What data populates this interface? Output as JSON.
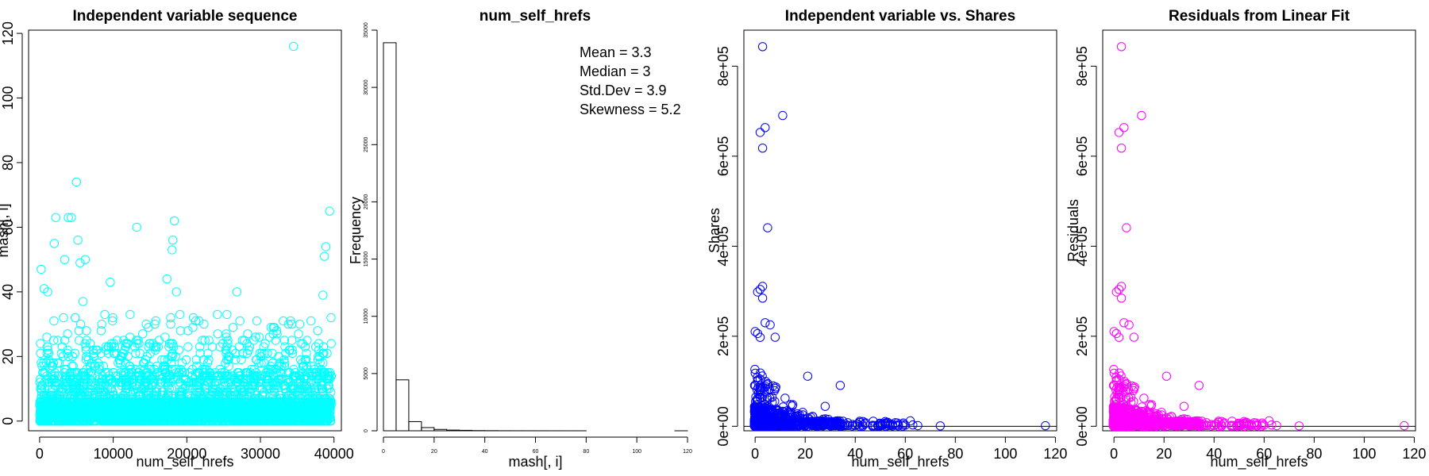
{
  "chart_data": [
    {
      "type": "scatter",
      "title": "Independent variable sequence",
      "xlabel": "num_self_hrefs",
      "ylabel": "mash[, i]",
      "xlim": [
        -1500,
        41000
      ],
      "ylim": [
        -3,
        121
      ],
      "xticks": [
        "0",
        "10000",
        "20000",
        "30000",
        "40000"
      ],
      "xtick_values": [
        0,
        10000,
        20000,
        30000,
        40000
      ],
      "yticks": [
        "0",
        "20",
        "40",
        "60",
        "80",
        "100",
        "120"
      ],
      "ytick_values": [
        0,
        20,
        40,
        60,
        80,
        100,
        120
      ],
      "color": "#00ffff",
      "n_points": 39644,
      "outliers": [
        {
          "x": 34500,
          "y": 116
        },
        {
          "x": 5000,
          "y": 74
        },
        {
          "x": 39400,
          "y": 65
        },
        {
          "x": 18300,
          "y": 62
        },
        {
          "x": 2200,
          "y": 63
        },
        {
          "x": 3900,
          "y": 63
        },
        {
          "x": 4300,
          "y": 63
        },
        {
          "x": 13200,
          "y": 60
        },
        {
          "x": 38900,
          "y": 54
        },
        {
          "x": 5200,
          "y": 56
        },
        {
          "x": 18100,
          "y": 56
        },
        {
          "x": 2000,
          "y": 55
        },
        {
          "x": 38700,
          "y": 51
        },
        {
          "x": 5500,
          "y": 49
        },
        {
          "x": 6200,
          "y": 50
        },
        {
          "x": 3400,
          "y": 50
        },
        {
          "x": 18000,
          "y": 53
        },
        {
          "x": 200,
          "y": 47
        },
        {
          "x": 9600,
          "y": 43
        },
        {
          "x": 17300,
          "y": 44
        },
        {
          "x": 26800,
          "y": 40
        },
        {
          "x": 38500,
          "y": 39
        },
        {
          "x": 600,
          "y": 41
        },
        {
          "x": 1100,
          "y": 40
        },
        {
          "x": 18600,
          "y": 40
        },
        {
          "x": 5900,
          "y": 37
        },
        {
          "x": 29500,
          "y": 31
        },
        {
          "x": 34100,
          "y": 31
        },
        {
          "x": 12300,
          "y": 33
        }
      ]
    },
    {
      "type": "bar",
      "title": "num_self_hrefs",
      "xlabel": "mash[, i]",
      "ylabel": "Frequency",
      "xlim": [
        0,
        120
      ],
      "ylim": [
        0,
        35000
      ],
      "xticks": [
        "0",
        "20",
        "40",
        "60",
        "80",
        "100",
        "120"
      ],
      "xtick_values": [
        0,
        20,
        40,
        60,
        80,
        100,
        120
      ],
      "yticks": [
        "0",
        "5000",
        "10000",
        "15000",
        "20000",
        "25000",
        "30000",
        "35000"
      ],
      "ytick_values": [
        0,
        5000,
        10000,
        15000,
        20000,
        25000,
        30000,
        35000
      ],
      "bin_edges": [
        0,
        5,
        10,
        15,
        20,
        25,
        30,
        35,
        40,
        45,
        50,
        55,
        60,
        65,
        70,
        75,
        80,
        85,
        90,
        95,
        100,
        105,
        110,
        115,
        120
      ],
      "values": [
        33900,
        4450,
        800,
        280,
        120,
        60,
        40,
        18,
        12,
        7,
        5,
        4,
        3,
        2,
        1,
        1,
        0,
        0,
        0,
        0,
        0,
        0,
        0,
        1
      ],
      "stats": [
        "Mean = 3.3",
        "Median = 3",
        "Std.Dev = 3.9",
        "Skewness = 5.2"
      ]
    },
    {
      "type": "scatter",
      "title": "Independent variable vs. Shares",
      "xlabel": "num_self_hrefs",
      "ylabel": "Shares",
      "xlim": [
        -4.5,
        120.5
      ],
      "ylim": [
        -10000,
        880000
      ],
      "xticks": [
        "0",
        "20",
        "40",
        "60",
        "80",
        "100",
        "120"
      ],
      "xtick_values": [
        0,
        20,
        40,
        60,
        80,
        100,
        120
      ],
      "yticks": [
        "0e+00",
        "2e+05",
        "4e+05",
        "6e+05",
        "8e+05"
      ],
      "ytick_values": [
        0,
        200000,
        400000,
        600000,
        800000
      ],
      "color": "#0000ff",
      "hline": 0,
      "outliers": [
        {
          "x": 3,
          "y": 843300
        },
        {
          "x": 11,
          "y": 690400
        },
        {
          "x": 4,
          "y": 663600
        },
        {
          "x": 2,
          "y": 652900
        },
        {
          "x": 3,
          "y": 617900
        },
        {
          "x": 5,
          "y": 441000
        },
        {
          "x": 3,
          "y": 310800
        },
        {
          "x": 2,
          "y": 304000
        },
        {
          "x": 1,
          "y": 298400
        },
        {
          "x": 3,
          "y": 284700
        },
        {
          "x": 6,
          "y": 225300
        },
        {
          "x": 0,
          "y": 210300
        },
        {
          "x": 1,
          "y": 206000
        },
        {
          "x": 2,
          "y": 197600
        },
        {
          "x": 8,
          "y": 197700
        },
        {
          "x": 4,
          "y": 230000
        },
        {
          "x": 21,
          "y": 111300
        },
        {
          "x": 34,
          "y": 90800
        },
        {
          "x": 28,
          "y": 44300
        },
        {
          "x": 116,
          "y": 1200
        },
        {
          "x": 74,
          "y": 1000
        },
        {
          "x": 63,
          "y": 3100
        },
        {
          "x": 65,
          "y": 1500
        },
        {
          "x": 62,
          "y": 12000
        },
        {
          "x": 60,
          "y": 2500
        },
        {
          "x": 56,
          "y": 8000
        },
        {
          "x": 55,
          "y": 3000
        },
        {
          "x": 54,
          "y": 2000
        },
        {
          "x": 53,
          "y": 1500
        },
        {
          "x": 51,
          "y": 2500
        },
        {
          "x": 49,
          "y": 1800
        },
        {
          "x": 47,
          "y": 2200
        },
        {
          "x": 43,
          "y": 3000
        },
        {
          "x": 41,
          "y": 5000
        },
        {
          "x": 40,
          "y": 2000
        },
        {
          "x": 39,
          "y": 4000
        },
        {
          "x": 37,
          "y": 8000
        }
      ]
    },
    {
      "type": "scatter",
      "title": "Residuals from Linear Fit",
      "xlabel": "num_self_hrefs",
      "ylabel": "Residuals",
      "xlim": [
        -4.5,
        120.5
      ],
      "ylim": [
        -10000,
        880000
      ],
      "xticks": [
        "0",
        "20",
        "40",
        "60",
        "80",
        "100",
        "120"
      ],
      "xtick_values": [
        0,
        20,
        40,
        60,
        80,
        100,
        120
      ],
      "yticks": [
        "0e+00",
        "2e+05",
        "4e+05",
        "6e+05",
        "8e+05"
      ],
      "ytick_values": [
        0,
        200000,
        400000,
        600000,
        800000
      ],
      "color": "#ff00ff",
      "hline": 0,
      "same_points_as": 2
    }
  ]
}
